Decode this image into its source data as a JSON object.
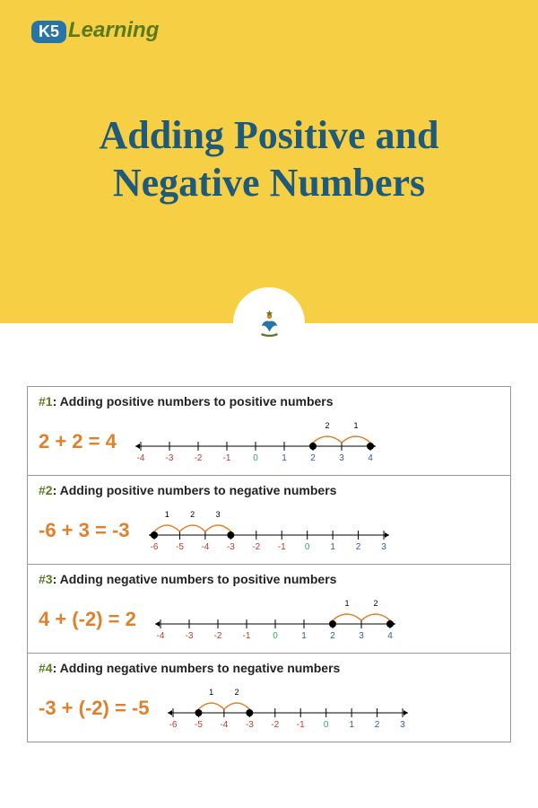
{
  "logo": {
    "badge": "K5",
    "text": "Learning"
  },
  "title_line1": "Adding Positive and",
  "title_line2": "Negative Numbers",
  "colors": {
    "header_bg": "#f6cf44",
    "title": "#1f5a7a",
    "equation": "#e0802b",
    "row_num": "#5a7a1e",
    "neg_tick": "#c0392b",
    "zero_tick": "#27ae60",
    "pos_tick": "#2e5aac",
    "arc": "#e0802b",
    "dot": "#000000",
    "axis": "#000000"
  },
  "rows": [
    {
      "num": "#1",
      "title": ": Adding positive numbers to positive numbers",
      "equation": "2 + 2 = 4",
      "range": [
        -4,
        4
      ],
      "dots": [
        2,
        4
      ],
      "arcs": [
        {
          "from": 2,
          "to": 3,
          "label": "2"
        },
        {
          "from": 3,
          "to": 4,
          "label": "1"
        }
      ],
      "direction": "right"
    },
    {
      "num": "#2",
      "title": ": Adding positive numbers to negative numbers",
      "equation": "-6 + 3 = -3",
      "range": [
        -6,
        3
      ],
      "dots": [
        -6,
        -3
      ],
      "arcs": [
        {
          "from": -6,
          "to": -5,
          "label": "1"
        },
        {
          "from": -5,
          "to": -4,
          "label": "2"
        },
        {
          "from": -4,
          "to": -3,
          "label": "3"
        }
      ],
      "direction": "right"
    },
    {
      "num": "#3",
      "title": ": Adding negative numbers to positive numbers",
      "equation": "4 + (-2) = 2",
      "range": [
        -4,
        4
      ],
      "dots": [
        4,
        2
      ],
      "arcs": [
        {
          "from": 4,
          "to": 3,
          "label": "2"
        },
        {
          "from": 3,
          "to": 2,
          "label": "1"
        }
      ],
      "direction": "left"
    },
    {
      "num": "#4",
      "title": ": Adding negative numbers to negative numbers",
      "equation": "-3 + (-2) = -5",
      "range": [
        -6,
        3
      ],
      "dots": [
        -3,
        -5
      ],
      "arcs": [
        {
          "from": -3,
          "to": -4,
          "label": "2"
        },
        {
          "from": -4,
          "to": -5,
          "label": "1"
        }
      ],
      "direction": "left"
    }
  ]
}
